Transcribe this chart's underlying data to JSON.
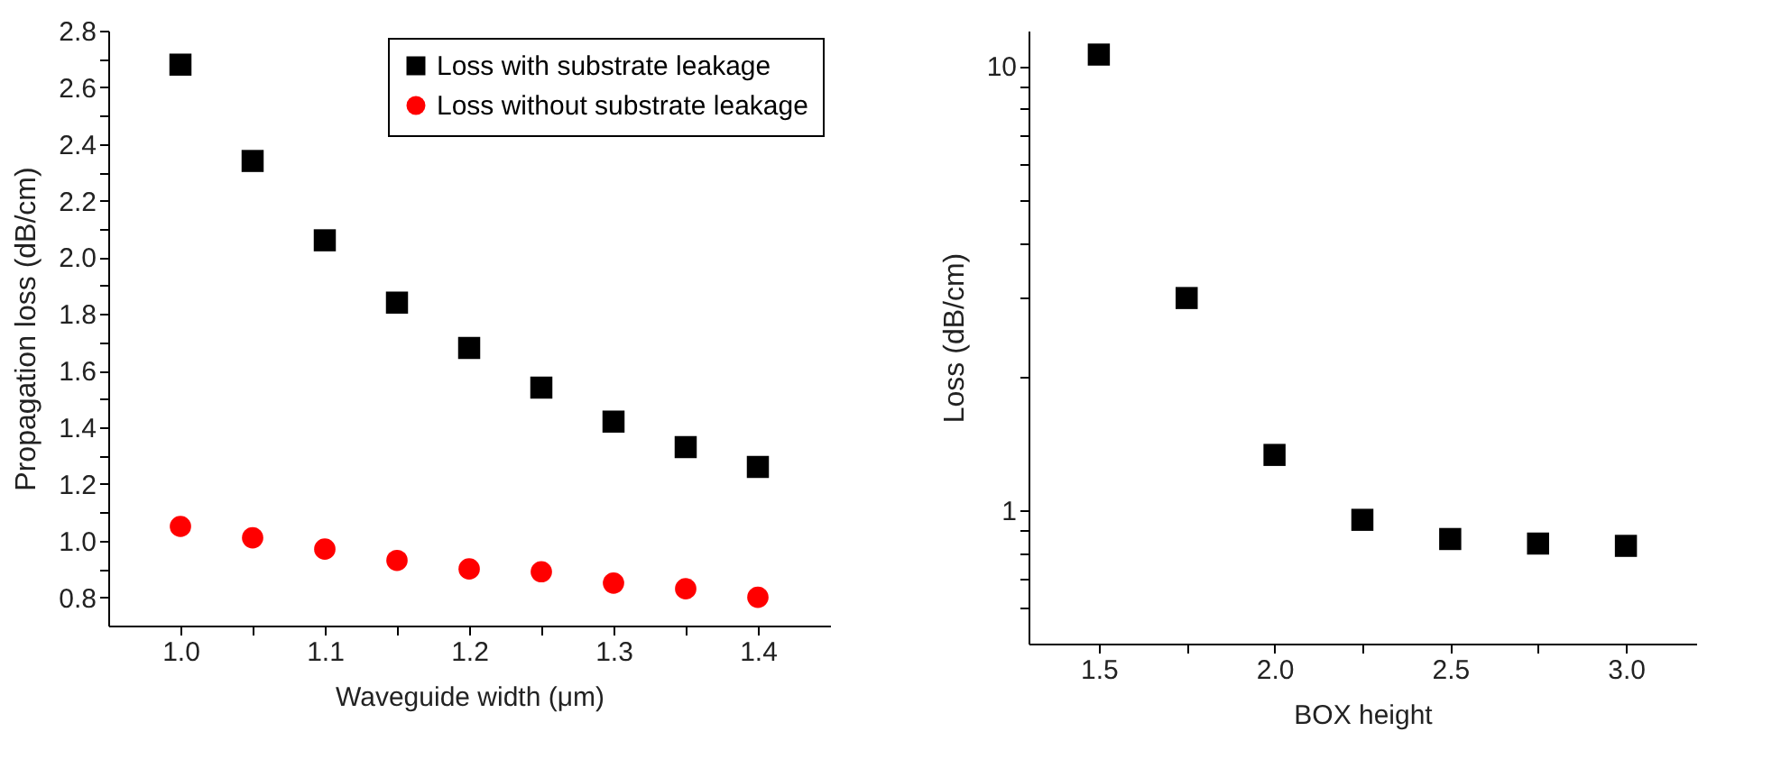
{
  "chart_data": [
    {
      "type": "scatter",
      "xlabel": "Waveguide width (μm)",
      "ylabel": "Propagation loss (dB/cm)",
      "legend": "top right",
      "x": [
        1.0,
        1.05,
        1.1,
        1.15,
        1.2,
        1.25,
        1.3,
        1.35,
        1.4
      ],
      "series": [
        {
          "name": "Loss with substrate leakage",
          "color": "#000000",
          "marker": "square",
          "values": [
            2.68,
            2.34,
            2.06,
            1.84,
            1.68,
            1.54,
            1.42,
            1.33,
            1.26
          ]
        },
        {
          "name": "Loss without substrate leakage",
          "color": "#ff0000",
          "marker": "circle",
          "values": [
            1.05,
            1.01,
            0.97,
            0.93,
            0.9,
            0.89,
            0.85,
            0.83,
            0.8
          ]
        }
      ],
      "xlim": [
        0.95,
        1.45
      ],
      "xticks": [
        {
          "value": 1.0,
          "label": "1.0"
        },
        {
          "value": 1.05,
          "label": null
        },
        {
          "value": 1.1,
          "label": "1.1"
        },
        {
          "value": 1.15,
          "label": null
        },
        {
          "value": 1.2,
          "label": "1.2"
        },
        {
          "value": 1.25,
          "label": null
        },
        {
          "value": 1.3,
          "label": "1.3"
        },
        {
          "value": 1.35,
          "label": null
        },
        {
          "value": 1.4,
          "label": "1.4"
        }
      ],
      "ylim": [
        0.7,
        2.8
      ],
      "yticks": [
        0.8,
        {
          "value": 0.9,
          "label": null
        },
        {
          "value": 1.0,
          "label": "1.0"
        },
        {
          "value": 1.1,
          "label": null
        },
        1.2,
        {
          "value": 1.3,
          "label": null
        },
        1.4,
        {
          "value": 1.5,
          "label": null
        },
        1.6,
        {
          "value": 1.7,
          "label": null
        },
        1.8,
        {
          "value": 1.9,
          "label": null
        },
        {
          "value": 2.0,
          "label": "2.0"
        },
        {
          "value": 2.1,
          "label": null
        },
        2.2,
        {
          "value": 2.3,
          "label": null
        },
        2.4,
        {
          "value": 2.5,
          "label": null
        },
        2.6,
        {
          "value": 2.7,
          "label": null
        },
        2.8
      ]
    },
    {
      "type": "scatter",
      "xlabel": "BOX height",
      "ylabel": "Loss (dB/cm)",
      "log": "y",
      "x": [
        1.5,
        1.75,
        2.0,
        2.25,
        2.5,
        2.75,
        3.0
      ],
      "series": [
        {
          "color": "#000000",
          "marker": "square",
          "values": [
            10.6,
            3.0,
            1.33,
            0.95,
            0.86,
            0.84,
            0.83
          ]
        }
      ],
      "xlim": [
        1.3,
        3.2
      ],
      "xticks": [
        1.5,
        {
          "value": 1.75,
          "label": null
        },
        {
          "value": 2.0,
          "label": "2.0"
        },
        {
          "value": 2.25,
          "label": null
        },
        2.5,
        {
          "value": 2.75,
          "label": null
        },
        {
          "value": 3.0,
          "label": "3.0"
        }
      ],
      "ylim": [
        0.5,
        12
      ],
      "yticks": [
        {
          "value": 0.6,
          "label": null
        },
        {
          "value": 0.7,
          "label": null
        },
        {
          "value": 0.8,
          "label": null
        },
        {
          "value": 0.9,
          "label": null
        },
        1,
        {
          "value": 2,
          "label": null
        },
        {
          "value": 3,
          "label": null
        },
        {
          "value": 4,
          "label": null
        },
        {
          "value": 5,
          "label": null
        },
        {
          "value": 6,
          "label": null
        },
        {
          "value": 7,
          "label": null
        },
        {
          "value": 8,
          "label": null
        },
        {
          "value": 9,
          "label": null
        },
        10
      ]
    }
  ]
}
